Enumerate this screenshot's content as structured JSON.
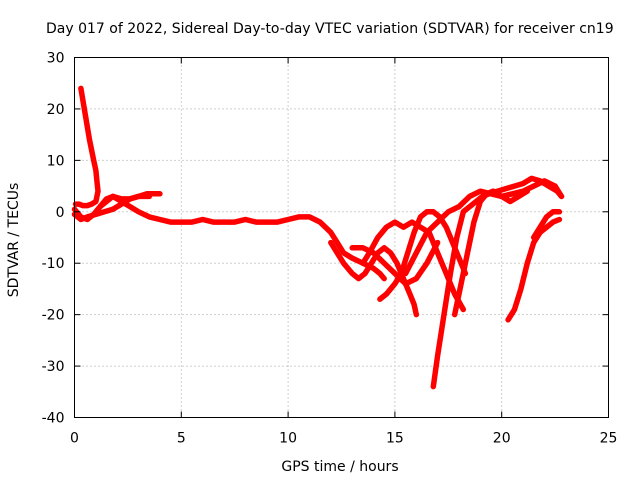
{
  "chart_data": {
    "type": "scatter",
    "title": "Day 017 of 2022, Sidereal Day-to-day VTEC variation (SDTVAR) for receiver cn19",
    "xlabel": "GPS time / hours",
    "ylabel": "SDTVAR / TECUs",
    "xlim": [
      0,
      25
    ],
    "ylim": [
      -40,
      30
    ],
    "x_ticks": [
      0,
      5,
      10,
      15,
      20,
      25
    ],
    "y_ticks": [
      -40,
      -30,
      -20,
      -10,
      0,
      10,
      20,
      30
    ],
    "grid": true,
    "marker": "+",
    "color": "#ff0000",
    "series": [
      {
        "name": "trace-1",
        "x": [
          0.3,
          0.5,
          0.7,
          0.9,
          1.0,
          1.05,
          1.1,
          1.0,
          0.8,
          0.6,
          0.4,
          0.2,
          0.05
        ],
        "y": [
          24,
          19,
          14,
          10,
          8,
          6,
          4,
          2,
          1.5,
          1.2,
          1.2,
          1.5,
          1.5
        ]
      },
      {
        "name": "trace-2",
        "x": [
          0.0,
          0.3,
          0.6,
          1.0,
          1.4,
          1.8,
          2.2,
          2.6,
          3.0,
          3.4,
          3.8,
          4.0
        ],
        "y": [
          -0.5,
          -1.5,
          -1,
          -0.5,
          0,
          0.5,
          1.5,
          2.5,
          3,
          3.5,
          3.5,
          3.5
        ]
      },
      {
        "name": "trace-3",
        "x": [
          0.0,
          0.3,
          0.6,
          0.9,
          1.2,
          1.5,
          1.8,
          2.2,
          2.6,
          3.0,
          3.5,
          4.0,
          4.5,
          5.0,
          5.5,
          6.0,
          6.5,
          7.0,
          7.5,
          8.0,
          8.5,
          9.0,
          9.5,
          10.0,
          10.5,
          11.0,
          11.5,
          12.0,
          12.3,
          12.6,
          13.0,
          13.5,
          14.0,
          14.3,
          14.5
        ],
        "y": [
          0.5,
          -1,
          -1.5,
          -0.5,
          1,
          2.5,
          3,
          2,
          1,
          0,
          -1,
          -1.5,
          -2,
          -2,
          -2,
          -1.5,
          -2,
          -2,
          -2,
          -1.5,
          -2,
          -2,
          -2,
          -1.5,
          -1,
          -1,
          -2,
          -4,
          -6,
          -8,
          -9,
          -10,
          -11,
          -12,
          -13
        ]
      },
      {
        "name": "trace-4",
        "x": [
          1.2,
          1.5,
          1.8,
          2.2,
          2.6,
          3.0,
          3.5
        ],
        "y": [
          1,
          2,
          3,
          2.5,
          2.5,
          3,
          3
        ]
      },
      {
        "name": "trace-5",
        "x": [
          12.0,
          12.3,
          12.6,
          13.0,
          13.3,
          13.6,
          13.9,
          14.2,
          14.5,
          14.8,
          15.1,
          15.4,
          15.7,
          15.9,
          16.0
        ],
        "y": [
          -6,
          -8,
          -10,
          -12,
          -13,
          -12,
          -10,
          -8,
          -7,
          -8,
          -10,
          -13,
          -16,
          -18,
          -20
        ]
      },
      {
        "name": "trace-6",
        "x": [
          13.0,
          13.5,
          14.0,
          14.5,
          15.0,
          15.5,
          16.0,
          16.5,
          17.0
        ],
        "y": [
          -7,
          -7,
          -8,
          -10,
          -12,
          -14,
          -13,
          -10,
          -6
        ]
      },
      {
        "name": "trace-7",
        "x": [
          13.5,
          13.8,
          14.2,
          14.6,
          15.0,
          15.4,
          15.8,
          16.2,
          16.6,
          17.0,
          17.4,
          17.8,
          18.2
        ],
        "y": [
          -10,
          -8,
          -5,
          -3,
          -2,
          -3,
          -2,
          -3,
          -4,
          -8,
          -12,
          -16,
          -19
        ]
      },
      {
        "name": "trace-8",
        "x": [
          14.3,
          14.6,
          15.0,
          15.3,
          15.6,
          15.9,
          16.2,
          16.5,
          16.8,
          17.1,
          17.4,
          17.7,
          18.0,
          18.3
        ],
        "y": [
          -17,
          -16,
          -14,
          -12,
          -8,
          -4,
          -1,
          0,
          0,
          -1,
          -3,
          -6,
          -9,
          -12
        ]
      },
      {
        "name": "trace-9",
        "x": [
          15.5,
          16.0,
          16.5,
          17.0,
          17.5,
          18.0,
          18.5,
          19.0,
          19.5,
          20.0,
          20.5,
          21.0,
          21.5,
          22.0,
          22.5,
          22.8
        ],
        "y": [
          -12,
          -8,
          -4,
          -2,
          0,
          1,
          3,
          4,
          3.5,
          3,
          3.5,
          4,
          5,
          6,
          5,
          3
        ]
      },
      {
        "name": "trace-10",
        "x": [
          16.8,
          17.0,
          17.3,
          17.6,
          17.9,
          18.2,
          18.5,
          18.8,
          19.1,
          19.4,
          19.8,
          20.2,
          20.6,
          21.0,
          21.4,
          21.8,
          22.2,
          22.6,
          22.8
        ],
        "y": [
          -34,
          -28,
          -20,
          -12,
          -5,
          0,
          1,
          2,
          3,
          3.5,
          4,
          4.5,
          5,
          5.5,
          6.5,
          6,
          5,
          4,
          3
        ]
      },
      {
        "name": "trace-11",
        "x": [
          17.8,
          18.1,
          18.4,
          18.7,
          19.0,
          19.3,
          19.6,
          20.0,
          20.4,
          20.8,
          21.2
        ],
        "y": [
          -20,
          -14,
          -8,
          -2,
          2,
          3.5,
          4,
          3,
          2,
          3,
          4
        ]
      },
      {
        "name": "trace-12",
        "x": [
          20.3,
          20.6,
          20.9,
          21.2,
          21.5,
          21.8,
          22.1,
          22.4,
          22.7
        ],
        "y": [
          -21,
          -19,
          -15,
          -10,
          -6,
          -4,
          -3,
          -2,
          -1.5
        ]
      },
      {
        "name": "trace-13",
        "x": [
          21.5,
          21.8,
          22.1,
          22.4,
          22.7
        ],
        "y": [
          -5,
          -3,
          -1,
          0,
          0
        ]
      }
    ]
  }
}
